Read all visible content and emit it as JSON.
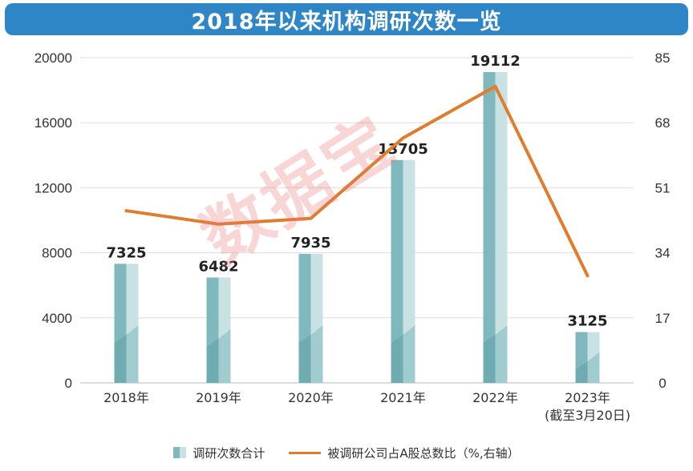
{
  "title": "2018年以来机构调研次数一览",
  "watermark": "数据宝",
  "colors": {
    "title_bg": "#2f86c6",
    "bar_front": "#7fb9bd",
    "bar_side": "#c8e2e4",
    "bar_dark": "#5d9ea3",
    "line": "#e07c2c"
  },
  "chart_data": {
    "type": "bar",
    "categories": [
      "2018年",
      "2019年",
      "2020年",
      "2021年",
      "2022年",
      "2023年"
    ],
    "category_notes": [
      "",
      "",
      "",
      "",
      "",
      "(截至3月20日)"
    ],
    "series": [
      {
        "name": "调研次数合计",
        "type": "bar",
        "axis": "left",
        "values": [
          7325,
          6482,
          7935,
          13705,
          19112,
          3125
        ]
      },
      {
        "name": "被调研公司占A股总数比（%,右轴）",
        "type": "line",
        "axis": "right",
        "values": [
          45,
          41.5,
          43,
          64,
          77.5,
          28
        ]
      }
    ],
    "y_left": {
      "ticks": [
        0,
        4000,
        8000,
        12000,
        16000,
        20000
      ],
      "ylim": [
        0,
        20000
      ]
    },
    "y_right": {
      "ticks": [
        0,
        17,
        34,
        51,
        68,
        85
      ],
      "ylim": [
        0,
        85
      ]
    },
    "grid": true,
    "legend_position": "bottom"
  },
  "legend": {
    "bar_label": "调研次数合计",
    "line_label": "被调研公司占A股总数比（%,右轴）"
  }
}
